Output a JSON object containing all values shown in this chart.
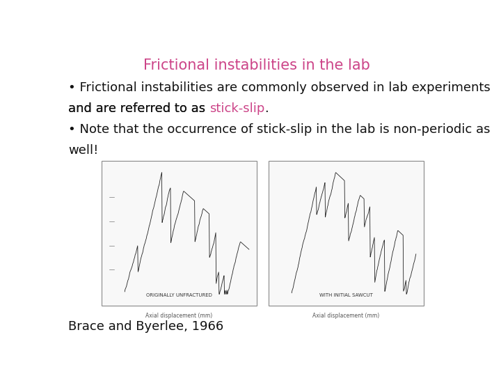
{
  "title": "Frictional instabilities in the lab",
  "title_color": "#cc4488",
  "title_fontsize": 15,
  "text_color": "#111111",
  "text_fontsize": 13,
  "pink_color": "#cc4488",
  "caption": "Brace and Byerlee, 1966",
  "caption_fontsize": 13,
  "bg_color": "#ffffff",
  "image_border_color": "#888888",
  "image_bg_color": "#f8f8f8",
  "left_label": "ORIGINALLY UNFRACTURED",
  "right_label": "WITH INITIAL SAWCUT",
  "xlabel": "Axial displacement (mm)"
}
